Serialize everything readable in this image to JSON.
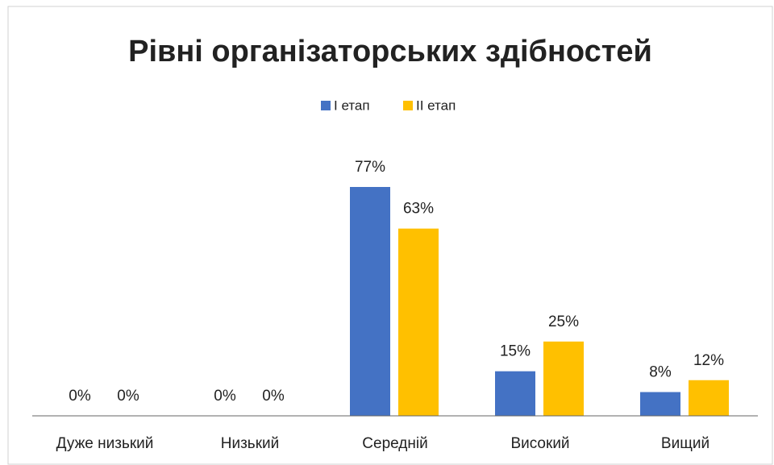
{
  "chart_data": {
    "type": "bar",
    "title": "Рівні організаторських здібностей",
    "categories": [
      "Дуже низький",
      "Низький",
      "Середній",
      "Високий",
      "Вищий"
    ],
    "series": [
      {
        "name": "І етап",
        "color": "#4472c4",
        "values": [
          0,
          0,
          77,
          15,
          8
        ],
        "value_labels": [
          "0%",
          "0%",
          "77%",
          "15%",
          "8%"
        ]
      },
      {
        "name": "ІІ етап",
        "color": "#ffc000",
        "values": [
          0,
          0,
          63,
          25,
          12
        ],
        "value_labels": [
          "0%",
          "0%",
          "63%",
          "25%",
          "12%"
        ]
      }
    ],
    "legend": "top"
  }
}
